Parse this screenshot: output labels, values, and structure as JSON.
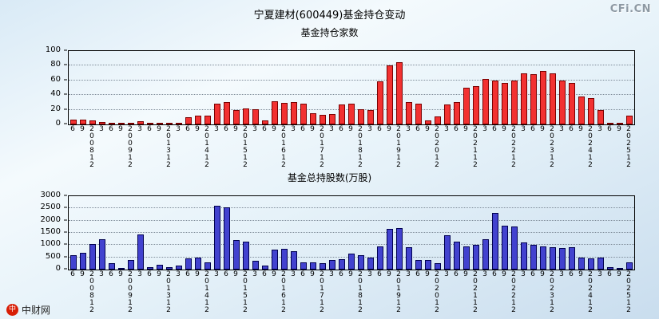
{
  "page": {
    "title": "宁夏建材(600449)基金持仓变动",
    "watermark": "CFi.CN",
    "logo_text": "中财网",
    "logo_glyph": "中"
  },
  "chart_data": [
    {
      "type": "bar",
      "title": "基金持仓家数",
      "ylabel": "基金持仓家数",
      "ylim": [
        0,
        100
      ],
      "yticks": [
        0,
        20,
        40,
        60,
        80,
        100
      ],
      "grid": true,
      "bar_color": "#f23131",
      "bar_border": "#7a0000",
      "categories": [
        "6",
        "9",
        "200812",
        "3",
        "6",
        "9",
        "200912",
        "3",
        "6",
        "9",
        "201312",
        "3",
        "6",
        "9",
        "201412",
        "3",
        "6",
        "9",
        "201512",
        "3",
        "6",
        "9",
        "201612",
        "3",
        "6",
        "9",
        "201712",
        "3",
        "6",
        "9",
        "201812",
        "3",
        "6",
        "9",
        "201912",
        "3",
        "6",
        "9",
        "202012",
        "3",
        "6",
        "9",
        "202112",
        "3",
        "6",
        "9",
        "202212",
        "3",
        "6",
        "9",
        "202312",
        "3",
        "6",
        "9",
        "202412",
        "3",
        "6",
        "9",
        "202512"
      ],
      "values": [
        6,
        6,
        5,
        3,
        1,
        1,
        2,
        4,
        1,
        1,
        1,
        2,
        10,
        12,
        12,
        28,
        30,
        20,
        22,
        21,
        5,
        31,
        29,
        30,
        28,
        15,
        13,
        14,
        27,
        28,
        21,
        20,
        59,
        80,
        85,
        30,
        28,
        5,
        11,
        27,
        30,
        50,
        52,
        62,
        60,
        56,
        60,
        70,
        68,
        73,
        70,
        60,
        57,
        38,
        36,
        20,
        2,
        1,
        12
      ]
    },
    {
      "type": "bar",
      "title": "基金总持股数(万股)",
      "ylabel": "基金总持股数(万股)",
      "ylim": [
        0,
        3000
      ],
      "yticks": [
        0,
        500,
        1000,
        1500,
        2000,
        2500,
        3000
      ],
      "grid": true,
      "bar_color": "#4242cf",
      "bar_border": "#00004f",
      "categories": [
        "6",
        "9",
        "200812",
        "3",
        "6",
        "9",
        "200912",
        "3",
        "6",
        "9",
        "201312",
        "3",
        "6",
        "9",
        "201412",
        "3",
        "6",
        "9",
        "201512",
        "3",
        "6",
        "9",
        "201612",
        "3",
        "6",
        "9",
        "201712",
        "3",
        "6",
        "9",
        "201812",
        "3",
        "6",
        "9",
        "201912",
        "3",
        "6",
        "9",
        "202012",
        "3",
        "6",
        "9",
        "202112",
        "3",
        "6",
        "9",
        "202212",
        "3",
        "6",
        "9",
        "202312",
        "3",
        "6",
        "9",
        "202412",
        "3",
        "6",
        "9",
        "202512"
      ],
      "values": [
        600,
        700,
        1050,
        1250,
        250,
        80,
        400,
        1450,
        100,
        200,
        100,
        150,
        450,
        500,
        300,
        2600,
        2550,
        1200,
        1150,
        350,
        150,
        800,
        850,
        750,
        300,
        280,
        250,
        400,
        420,
        650,
        600,
        500,
        950,
        1650,
        1700,
        900,
        400,
        380,
        250,
        1400,
        1150,
        950,
        1000,
        1250,
        2300,
        1800,
        1750,
        1100,
        1000,
        950,
        920,
        880,
        900,
        480,
        450,
        500,
        100,
        50,
        300
      ]
    }
  ]
}
